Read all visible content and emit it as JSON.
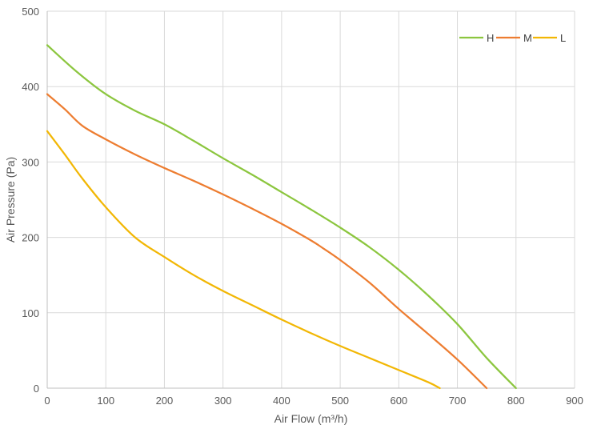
{
  "chart_data": {
    "type": "line",
    "title": "",
    "xlabel": "Air Flow  (m³/h)",
    "ylabel": "Air Pressure  (Pa)",
    "xlim": [
      0,
      900
    ],
    "ylim": [
      0,
      500
    ],
    "xticks": [
      0,
      100,
      200,
      300,
      400,
      500,
      600,
      700,
      800,
      900
    ],
    "yticks": [
      0,
      100,
      200,
      300,
      400,
      500
    ],
    "grid": true,
    "legend_position": "top-right",
    "series": [
      {
        "name": "H",
        "color": "#8CC63F",
        "points": [
          [
            0,
            455
          ],
          [
            50,
            420
          ],
          [
            100,
            390
          ],
          [
            150,
            368
          ],
          [
            200,
            350
          ],
          [
            250,
            328
          ],
          [
            300,
            305
          ],
          [
            350,
            283
          ],
          [
            400,
            260
          ],
          [
            450,
            237
          ],
          [
            500,
            213
          ],
          [
            550,
            187
          ],
          [
            600,
            157
          ],
          [
            650,
            123
          ],
          [
            700,
            85
          ],
          [
            750,
            40
          ],
          [
            800,
            0
          ]
        ]
      },
      {
        "name": "M",
        "color": "#ED7D31",
        "points": [
          [
            0,
            390
          ],
          [
            30,
            370
          ],
          [
            60,
            348
          ],
          [
            100,
            330
          ],
          [
            150,
            310
          ],
          [
            200,
            292
          ],
          [
            250,
            275
          ],
          [
            300,
            257
          ],
          [
            350,
            238
          ],
          [
            400,
            218
          ],
          [
            450,
            196
          ],
          [
            470,
            186
          ],
          [
            500,
            170
          ],
          [
            550,
            140
          ],
          [
            600,
            105
          ],
          [
            650,
            72
          ],
          [
            700,
            38
          ],
          [
            750,
            0
          ]
        ]
      },
      {
        "name": "L",
        "color": "#F2B705",
        "points": [
          [
            0,
            341
          ],
          [
            30,
            310
          ],
          [
            60,
            278
          ],
          [
            100,
            240
          ],
          [
            150,
            200
          ],
          [
            200,
            174
          ],
          [
            250,
            150
          ],
          [
            300,
            129
          ],
          [
            350,
            110
          ],
          [
            400,
            91
          ],
          [
            450,
            73
          ],
          [
            500,
            56
          ],
          [
            550,
            40
          ],
          [
            600,
            24
          ],
          [
            650,
            8
          ],
          [
            670,
            0
          ]
        ]
      }
    ]
  }
}
